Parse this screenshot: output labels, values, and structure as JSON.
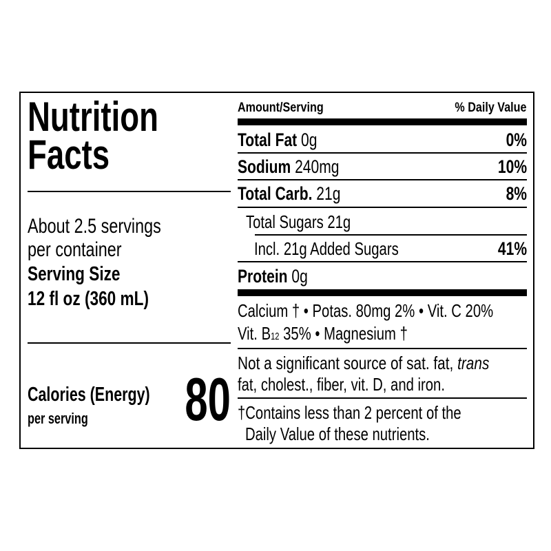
{
  "title": [
    "Nutrition",
    "Facts"
  ],
  "servings": {
    "per_container_line1": "About 2.5 servings",
    "per_container_line2": "per container",
    "serving_size_label": "Serving Size",
    "serving_size_value": "12 fl oz (360 mL)"
  },
  "calories": {
    "label": "Calories (Energy)",
    "sublabel": "per serving",
    "value": "80"
  },
  "header": {
    "amount": "Amount/Serving",
    "daily_value": "% Daily Value"
  },
  "nutrients": [
    {
      "name": "Total Fat",
      "amount": "0g",
      "dv": "0%"
    },
    {
      "name": "Sodium",
      "amount": "240mg",
      "dv": "10%"
    },
    {
      "name": "Total Carb.",
      "amount": "21g",
      "dv": "8%"
    },
    {
      "name": "Total Sugars 21g",
      "amount": "",
      "dv": ""
    },
    {
      "name": "Incl. 21g Added Sugars",
      "amount": "",
      "dv": "41%"
    },
    {
      "name": "Protein",
      "amount": "0g",
      "dv": ""
    }
  ],
  "vitamins": {
    "line1": "Calcium † • Potas. 80mg 2% • Vit. C 20%",
    "line2_pre": "Vit. B",
    "line2_sub": "12",
    "line2_post": " 35% • Magnesium †"
  },
  "not_significant": {
    "line1_pre": "Not a significant source of sat. fat, ",
    "line1_italic": "trans",
    "line2": "fat, cholest., fiber, vit. D, and iron."
  },
  "footnote": {
    "line1": "†Contains less than 2 percent of the",
    "line2": "Daily Value of these nutrients."
  }
}
